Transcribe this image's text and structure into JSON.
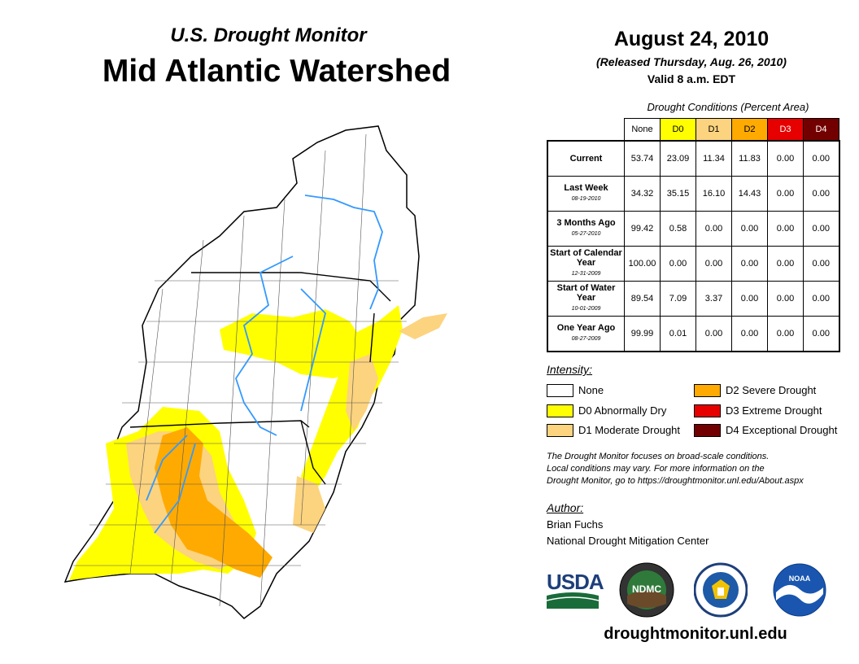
{
  "header": {
    "subtitle": "U.S. Drought Monitor",
    "title": "Mid Atlantic Watershed",
    "date": "August 24, 2010",
    "released": "(Released Thursday, Aug. 26, 2010)",
    "valid": "Valid 8 a.m. EDT"
  },
  "table": {
    "caption": "Drought Conditions (Percent Area)",
    "columns": [
      {
        "label": "None",
        "color": "#ffffff"
      },
      {
        "label": "D0",
        "color": "#ffff00"
      },
      {
        "label": "D1",
        "color": "#fcd37f"
      },
      {
        "label": "D2",
        "color": "#ffaa00"
      },
      {
        "label": "D3",
        "color": "#e60000"
      },
      {
        "label": "D4",
        "color": "#730000"
      }
    ],
    "rows": [
      {
        "label": "Current",
        "date": "",
        "values": [
          "53.74",
          "23.09",
          "11.34",
          "11.83",
          "0.00",
          "0.00"
        ]
      },
      {
        "label": "Last Week",
        "date": "08-19-2010",
        "values": [
          "34.32",
          "35.15",
          "16.10",
          "14.43",
          "0.00",
          "0.00"
        ]
      },
      {
        "label": "3 Months Ago",
        "date": "05-27-2010",
        "values": [
          "99.42",
          "0.58",
          "0.00",
          "0.00",
          "0.00",
          "0.00"
        ]
      },
      {
        "label": "Start of Calendar Year",
        "date": "12-31-2009",
        "values": [
          "100.00",
          "0.00",
          "0.00",
          "0.00",
          "0.00",
          "0.00"
        ]
      },
      {
        "label": "Start of Water Year",
        "date": "10-01-2009",
        "values": [
          "89.54",
          "7.09",
          "3.37",
          "0.00",
          "0.00",
          "0.00"
        ]
      },
      {
        "label": "One Year Ago",
        "date": "08-27-2009",
        "values": [
          "99.99",
          "0.01",
          "0.00",
          "0.00",
          "0.00",
          "0.00"
        ]
      }
    ]
  },
  "legend": {
    "title": "Intensity:",
    "items": [
      {
        "label": "None",
        "color": "#ffffff"
      },
      {
        "label": "D0 Abnormally Dry",
        "color": "#ffff00"
      },
      {
        "label": "D1 Moderate Drought",
        "color": "#fcd37f"
      },
      {
        "label": "D2 Severe Drought",
        "color": "#ffaa00"
      },
      {
        "label": "D3 Extreme Drought",
        "color": "#e60000"
      },
      {
        "label": "D4 Exceptional Drought",
        "color": "#730000"
      }
    ]
  },
  "note": {
    "line1": "The Drought Monitor focuses on broad-scale conditions.",
    "line2": "Local conditions may vary. For more information on the",
    "line3": "Drought Monitor, go to https://droughtmonitor.unl.edu/About.aspx"
  },
  "author": {
    "heading": "Author:",
    "name": "Brian Fuchs",
    "org": "National Drought Mitigation Center"
  },
  "logos": {
    "usda": "USDA",
    "ndmc": "NDMC",
    "noaa": "NOAA"
  },
  "website": "droughtmonitor.unl.edu",
  "map": {
    "river_color": "#3399ff",
    "boundary_color": "#000000"
  }
}
